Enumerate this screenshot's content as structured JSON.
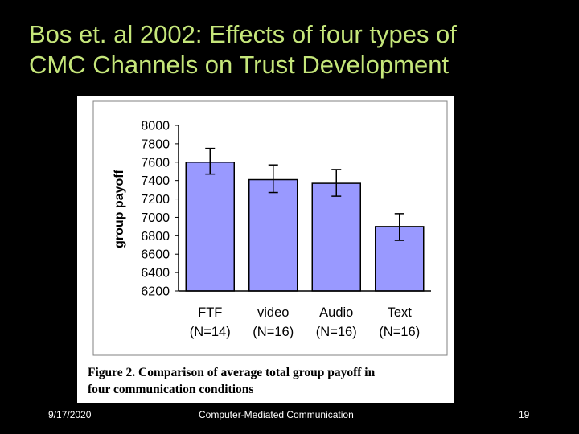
{
  "slide": {
    "title_lines": [
      "Bos et. al 2002: Effects of four types of",
      "CMC Channels on Trust Development"
    ],
    "title_color": "#c5e67a",
    "footer": {
      "date": "9/17/2020",
      "center": "Computer-Mediated Communication",
      "page": "19"
    }
  },
  "figure": {
    "caption_lines": [
      "Figure 2. Comparison of average total group payoff in",
      "four communication conditions"
    ]
  },
  "chart_data": {
    "type": "bar",
    "categories": [
      "FTF",
      "video",
      "Audio",
      "Text"
    ],
    "category_sublabels": [
      "(N=14)",
      "(N=16)",
      "(N=16)",
      "(N=16)"
    ],
    "values": [
      7600,
      7410,
      7370,
      6900
    ],
    "error_low": [
      7470,
      7270,
      7230,
      6750
    ],
    "error_high": [
      7750,
      7570,
      7520,
      7040
    ],
    "ylabel": "group payoff",
    "ylim": [
      6200,
      8000
    ],
    "yticks": [
      6200,
      6400,
      6600,
      6800,
      7000,
      7200,
      7400,
      7600,
      7800,
      8000
    ],
    "bar_color": "#9999ff",
    "bar_edge_color": "#000000",
    "grid": false,
    "legend": "none"
  }
}
